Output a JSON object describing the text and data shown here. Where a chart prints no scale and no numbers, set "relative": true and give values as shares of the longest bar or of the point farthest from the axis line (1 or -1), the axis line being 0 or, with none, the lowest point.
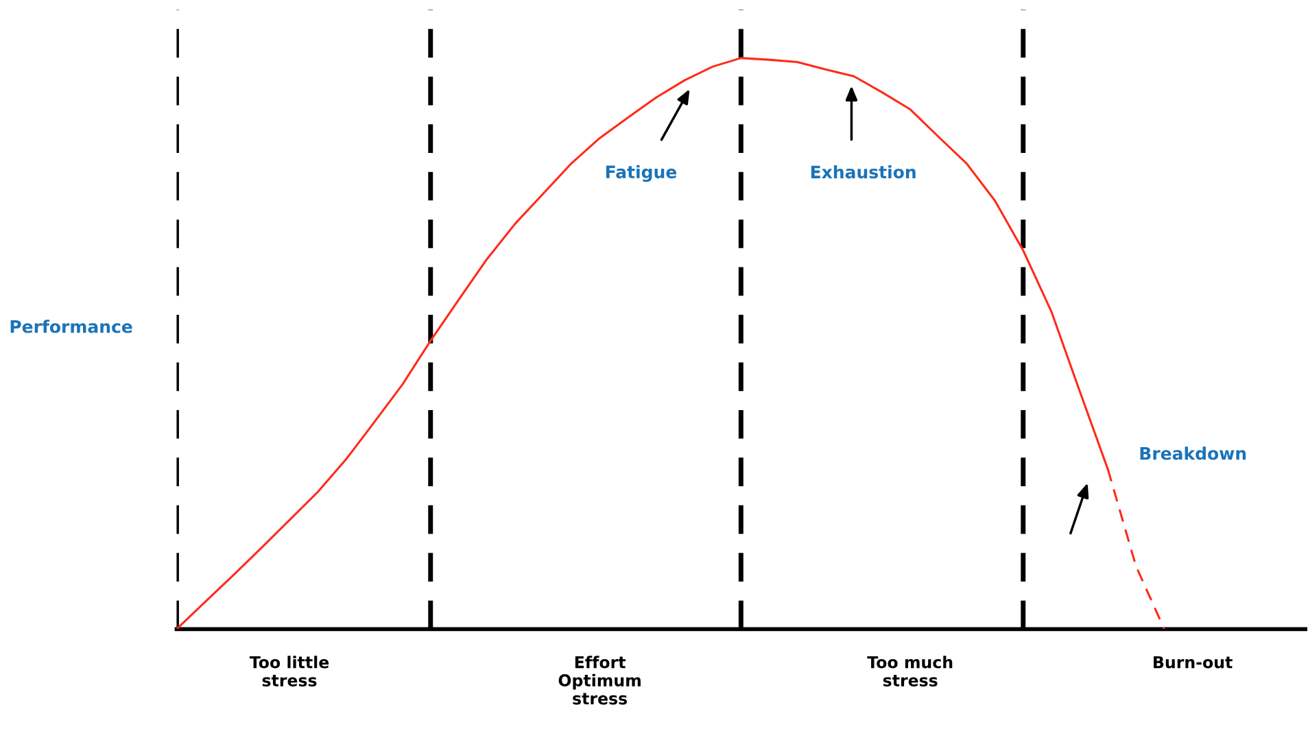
{
  "chart_data": {
    "type": "line",
    "relative": true,
    "ylabel": "Performance",
    "categories": [
      null,
      null,
      null,
      null,
      "Too little\nstress",
      null,
      null,
      null,
      null,
      null,
      null,
      null,
      null,
      null,
      null,
      "Effort\nOptimum\nstress",
      null,
      null,
      null,
      null,
      null,
      null,
      null,
      null,
      null,
      null,
      "Too much\nstress",
      null,
      null,
      null,
      null,
      null,
      null,
      null,
      null,
      null,
      "Burn-out",
      null,
      null,
      null,
      null
    ],
    "series": [
      {
        "color": "#ff2a1a",
        "line_style": "solid",
        "values": [
          0,
          0.047,
          0.094,
          0.142,
          0.191,
          0.24,
          0.297,
          0.362,
          0.428,
          0.505,
          0.577,
          0.648,
          0.71,
          0.763,
          0.816,
          0.86,
          0.896,
          0.931,
          0.961,
          0.985,
          1.0,
          0.997,
          0.993,
          0.98,
          0.968,
          0.94,
          0.91,
          0.862,
          0.815,
          0.75,
          0.663,
          0.556,
          0.417,
          0.28,
          null,
          null,
          null,
          null,
          null,
          null,
          null
        ]
      },
      {
        "color": "#ff2a1a",
        "line_style": "dashed",
        "values": [
          null,
          null,
          null,
          null,
          null,
          null,
          null,
          null,
          null,
          null,
          null,
          null,
          null,
          null,
          null,
          null,
          null,
          null,
          null,
          null,
          null,
          null,
          null,
          null,
          null,
          null,
          null,
          null,
          null,
          null,
          null,
          null,
          null,
          0.28,
          0.11,
          0,
          null,
          null,
          null,
          null,
          null
        ]
      }
    ],
    "annotations": [
      "Fatigue",
      "Exhaustion",
      "Breakdown"
    ],
    "marker": "none",
    "grid": "x"
  }
}
